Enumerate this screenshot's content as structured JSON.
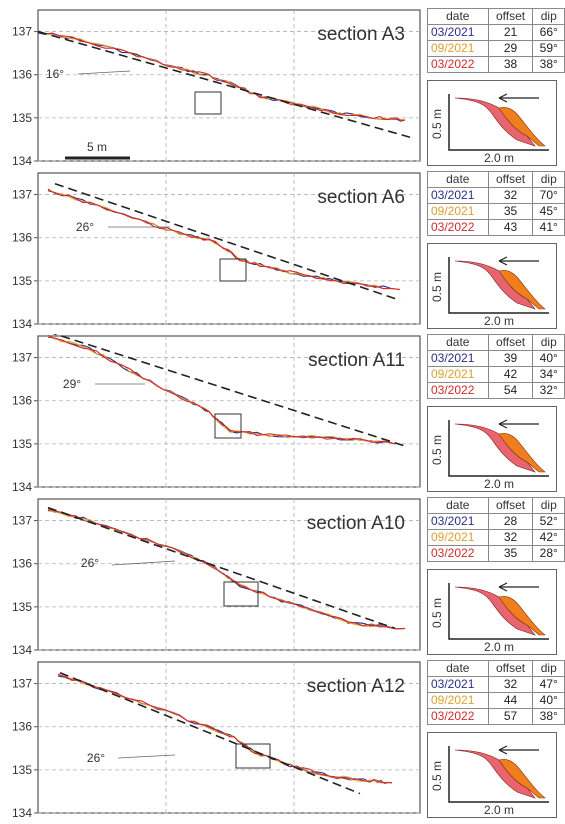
{
  "colors": {
    "date_2021_03": "#2b2e8c",
    "date_2021_09": "#e0a030",
    "date_2022_03": "#d42a2a",
    "fill_red": "#e8646e",
    "fill_orange": "#f07d1e",
    "fill_pink": "#f2b0b0",
    "trend": "#222222"
  },
  "table_headers": {
    "date": "date",
    "offset": "offset",
    "dip": "dip"
  },
  "scale_bar": "5 m",
  "inset_axes": {
    "x": "2.0 m",
    "y": "0.5 m"
  },
  "chart_data": [
    {
      "type": "line",
      "title": "section A3",
      "ylim": [
        134,
        137.5
      ],
      "yticks": [
        "137",
        "136",
        "135",
        "134"
      ],
      "trend_angle": "16°",
      "series_dates": [
        "03/2021",
        "09/2021",
        "03/2022"
      ],
      "table": [
        {
          "date": "03/2021",
          "offset": "21",
          "dip": "66°"
        },
        {
          "date": "09/2021",
          "offset": "29",
          "dip": "59°"
        },
        {
          "date": "03/2022",
          "offset": "38",
          "dip": "38°"
        }
      ]
    },
    {
      "type": "line",
      "title": "section A6",
      "ylim": [
        134,
        137.5
      ],
      "yticks": [
        "137",
        "136",
        "135",
        "134"
      ],
      "trend_angle": "26°",
      "series_dates": [
        "03/2021",
        "09/2021",
        "03/2022"
      ],
      "table": [
        {
          "date": "03/2021",
          "offset": "32",
          "dip": "70°"
        },
        {
          "date": "09/2021",
          "offset": "35",
          "dip": "45°"
        },
        {
          "date": "03/2022",
          "offset": "43",
          "dip": "41°"
        }
      ]
    },
    {
      "type": "line",
      "title": "section A11",
      "ylim": [
        134,
        137.5
      ],
      "yticks": [
        "137",
        "136",
        "135",
        "134"
      ],
      "trend_angle": "29°",
      "series_dates": [
        "03/2021",
        "09/2021",
        "03/2022"
      ],
      "table": [
        {
          "date": "03/2021",
          "offset": "39",
          "dip": "40°"
        },
        {
          "date": "09/2021",
          "offset": "42",
          "dip": "34°"
        },
        {
          "date": "03/2022",
          "offset": "54",
          "dip": "32°"
        }
      ]
    },
    {
      "type": "line",
      "title": "section A10",
      "ylim": [
        134,
        137.5
      ],
      "yticks": [
        "137",
        "136",
        "135",
        "134"
      ],
      "trend_angle": "26°",
      "series_dates": [
        "03/2021",
        "09/2021",
        "03/2022"
      ],
      "table": [
        {
          "date": "03/2021",
          "offset": "28",
          "dip": "52°"
        },
        {
          "date": "09/2021",
          "offset": "32",
          "dip": "42°"
        },
        {
          "date": "03/2022",
          "offset": "35",
          "dip": "28°"
        }
      ]
    },
    {
      "type": "line",
      "title": "section A12",
      "ylim": [
        134,
        137.5
      ],
      "yticks": [
        "137",
        "136",
        "135",
        "134"
      ],
      "trend_angle": "26°",
      "series_dates": [
        "03/2021",
        "09/2021",
        "03/2022"
      ],
      "table": [
        {
          "date": "03/2021",
          "offset": "32",
          "dip": "47°"
        },
        {
          "date": "09/2021",
          "offset": "44",
          "dip": "40°"
        },
        {
          "date": "03/2022",
          "offset": "57",
          "dip": "38°"
        }
      ]
    }
  ]
}
